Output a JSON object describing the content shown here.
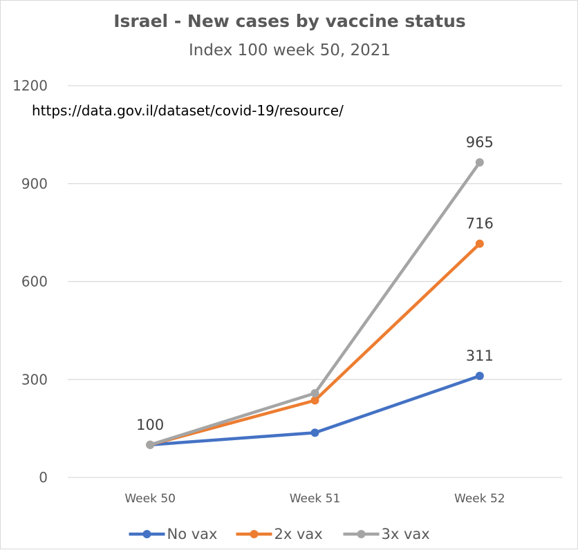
{
  "chart_data": {
    "type": "line",
    "title": "Israel - New cases by vaccine status",
    "subtitle": "Index 100 week 50, 2021",
    "annotation": "https://data.gov.il/dataset/covid-19/resource/",
    "categories": [
      "Week 50",
      "Week 51",
      "Week 52"
    ],
    "ylim": [
      0,
      1200
    ],
    "yticks": [
      0,
      300,
      600,
      900,
      1200
    ],
    "grid": true,
    "legend_position": "bottom",
    "series": [
      {
        "name": "No vax",
        "color": "#4472c4",
        "values": [
          100,
          137,
          311
        ],
        "labels": [
          "",
          "",
          "311"
        ]
      },
      {
        "name": "2x vax",
        "color": "#ed7d31",
        "values": [
          100,
          236,
          716
        ],
        "labels": [
          "",
          "",
          "716"
        ]
      },
      {
        "name": "3x vax",
        "color": "#a5a5a5",
        "values": [
          100,
          258,
          965
        ],
        "labels": [
          "100",
          "",
          "965"
        ]
      }
    ],
    "gridline_color": "#d9d9d9"
  }
}
